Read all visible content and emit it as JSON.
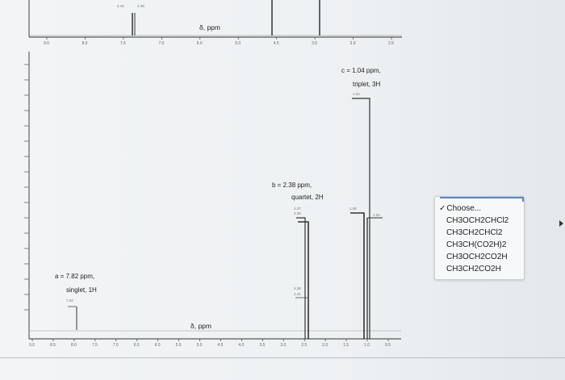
{
  "top_spectrum": {
    "axis_title": "δ, ppm",
    "peak_labels": [
      "2.40",
      "2.38"
    ],
    "tick_labels": [
      "9.0",
      "8.0",
      "7.5",
      "7.0",
      "6.0",
      "5.0",
      "4.5",
      "3.5",
      "3.0",
      "2.5"
    ]
  },
  "main_spectrum": {
    "axis_title": "δ, ppm",
    "tick_labels": [
      "9.0",
      "8.5",
      "8.0",
      "7.5",
      "7.0",
      "6.5",
      "6.0",
      "5.5",
      "5.0",
      "4.5",
      "4.0",
      "3.5",
      "3.0",
      "2.5",
      "2.0",
      "1.5",
      "1.0",
      "0.5"
    ],
    "peaks": [
      {
        "id": "a",
        "shift_ppm": 7.82,
        "multiplicity": "singlet",
        "integration": "1H",
        "label_line1": "a = 7.82 ppm,",
        "label_line2": "singlet, 1H",
        "small_labels": [
          "7.82"
        ]
      },
      {
        "id": "b",
        "shift_ppm": 2.38,
        "multiplicity": "quartet",
        "integration": "2H",
        "label_line1": "b = 2.38 ppm,",
        "label_line2": "quartet, 2H",
        "small_labels": [
          "2.37",
          "2.38",
          "2.38",
          "2.41"
        ]
      },
      {
        "id": "c",
        "shift_ppm": 1.04,
        "multiplicity": "triplet",
        "integration": "3H",
        "label_line1": "c = 1.04 ppm,",
        "label_line2": "triplet, 3H",
        "small_labels": [
          "1.04",
          "1.06",
          "1.02"
        ]
      }
    ]
  },
  "dropdown": {
    "selected": "Choose...",
    "check_mark": "✓",
    "options": [
      "CH3OCH2CHCl2",
      "CH3CH2CHCl2",
      "CH3CH(CO2H)2",
      "CH3OCH2CO2H",
      "CH3CH2CO2H"
    ]
  }
}
